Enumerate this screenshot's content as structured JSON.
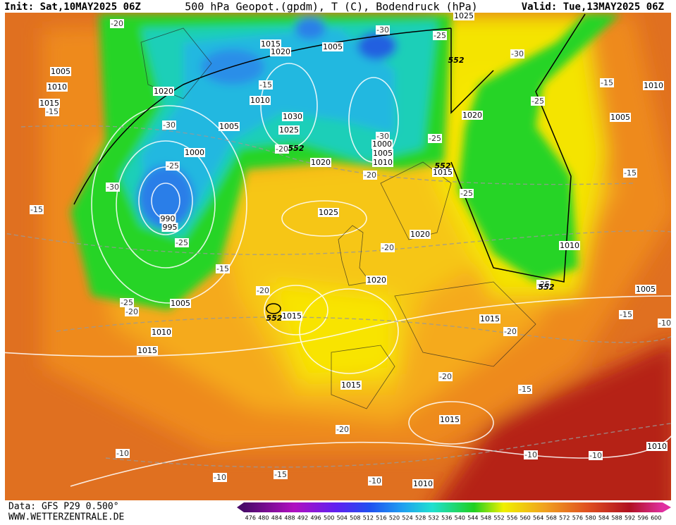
{
  "header": {
    "init": "Init: Sat,10MAY2025 06Z",
    "title": "500 hPa Geopot.(gpdm), T (C), Bodendruck (hPa)",
    "valid": "Valid: Tue,13MAY2025 06Z"
  },
  "footer": {
    "source": "Data: GFS P29 0.500°",
    "website": "WWW.WETTERZENTRALE.DE"
  },
  "colorbar": {
    "ticks": [
      476,
      480,
      484,
      488,
      492,
      496,
      500,
      504,
      508,
      512,
      516,
      520,
      524,
      528,
      532,
      536,
      540,
      544,
      548,
      552,
      556,
      560,
      564,
      568,
      572,
      576,
      580,
      584,
      588,
      592,
      596,
      600
    ]
  },
  "map": {
    "pressure_labels": [
      "1025",
      "1015",
      "1020",
      "1005",
      "1005",
      "1010",
      "1015",
      "1020",
      "1010",
      "1030",
      "1025",
      "1005",
      "1000",
      "1020",
      "1015",
      "1000",
      "1005",
      "1010",
      "990",
      "995",
      "1025",
      "1020",
      "1010",
      "1020",
      "1005",
      "1010",
      "1015",
      "1015",
      "1015",
      "1015",
      "1015",
      "1010",
      "1010",
      "1005",
      "1005",
      "1010",
      "1020"
    ],
    "temperature_labels": [
      "-20",
      "-30",
      "-25",
      "-30",
      "-15",
      "-25",
      "-30",
      "-15",
      "-25",
      "-30",
      "-15",
      "-25",
      "-20",
      "-25",
      "-30",
      "-25",
      "-15",
      "-20",
      "-15",
      "-20",
      "-25",
      "-20",
      "-25",
      "-15",
      "-20",
      "-20",
      "-15",
      "-20",
      "-10",
      "-10",
      "-10",
      "-15",
      "-10",
      "-10",
      "-10",
      "-20",
      "-15"
    ],
    "geopotential_labels": [
      "552",
      "552",
      "552",
      "552",
      "552"
    ]
  }
}
